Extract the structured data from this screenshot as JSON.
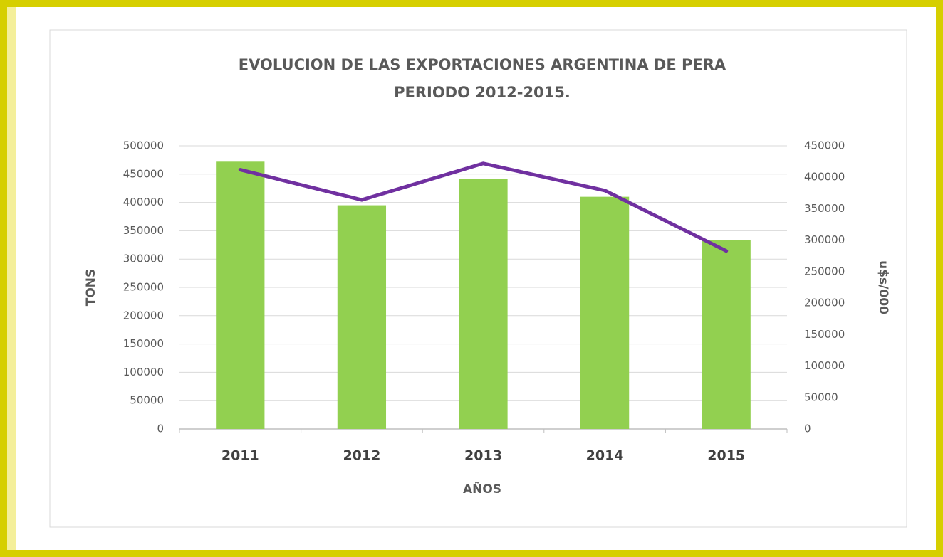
{
  "chart_data": {
    "type": "bar_line",
    "title": [
      "EVOLUCION DE LAS EXPORTACIONES ARGENTINA DE PERA",
      "PERIODO 2012-2015."
    ],
    "xlabel": "AÑOS",
    "ylabel": "TONS",
    "y2label": "u$s/000",
    "categories": [
      "2011",
      "2012",
      "2013",
      "2014",
      "2015"
    ],
    "series": [
      {
        "type": "bar",
        "color": "#92d050",
        "values": [
          472000,
          395000,
          442000,
          410000,
          333000
        ]
      },
      {
        "type": "line",
        "axis": "y2",
        "color": "#7030a0",
        "values": [
          412000,
          364000,
          422000,
          379000,
          283000
        ]
      }
    ],
    "ylim": [
      0,
      500000
    ],
    "yticks": [
      0,
      50000,
      100000,
      150000,
      200000,
      250000,
      300000,
      350000,
      400000,
      450000,
      500000
    ],
    "y2lim": [
      0,
      450000
    ],
    "y2ticks": [
      0,
      50000,
      100000,
      150000,
      200000,
      250000,
      300000,
      350000,
      400000,
      450000
    ],
    "grid": true
  }
}
